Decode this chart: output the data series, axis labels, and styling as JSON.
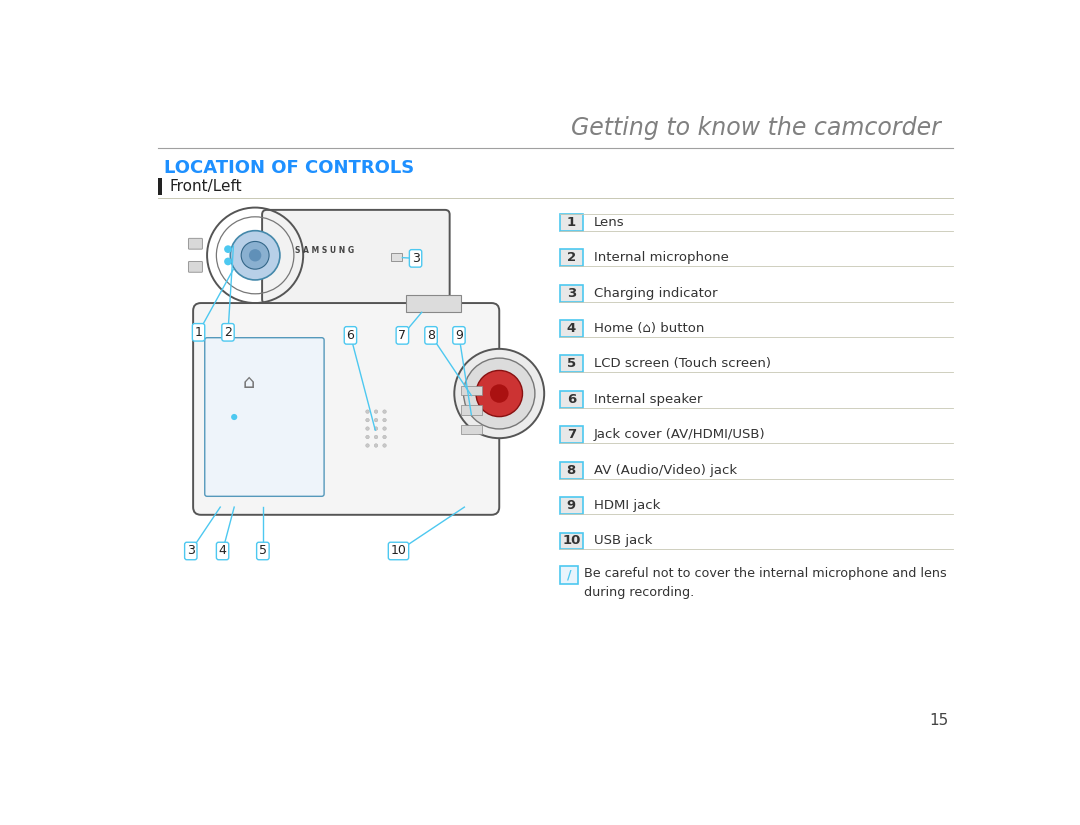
{
  "title": "Getting to know the camcorder",
  "section_title": "LOCATION OF CONTROLS",
  "subsection_title": "Front/Left",
  "items": [
    {
      "num": "1",
      "desc": "Lens"
    },
    {
      "num": "2",
      "desc": "Internal microphone"
    },
    {
      "num": "3",
      "desc": "Charging indicator"
    },
    {
      "num": "4",
      "desc": "Home (⌂) button"
    },
    {
      "num": "5",
      "desc": "LCD screen (Touch screen)"
    },
    {
      "num": "6",
      "desc": "Internal speaker"
    },
    {
      "num": "7",
      "desc": "Jack cover (AV/HDMI/USB)"
    },
    {
      "num": "8",
      "desc": "AV (Audio/Video) jack"
    },
    {
      "num": "9",
      "desc": "HDMI jack"
    },
    {
      "num": "10",
      "desc": "USB jack"
    }
  ],
  "note_text": "Be careful not to cover the internal microphone and lens\nduring recording.",
  "page_number": "15",
  "title_color": "#808080",
  "section_color": "#1E90FF",
  "subsection_color": "#222222",
  "item_num_color": "#333333",
  "item_bg_color": "#E8E8E8",
  "item_border_color": "#4DC8F0",
  "divider_color": "#C8C8B4",
  "top_line_color": "#A0A0A0",
  "note_border_color": "#4DC8F0",
  "note_bg_color": "#E8F4FC",
  "bg_color": "#FFFFFF",
  "sidebar_color": "#222222",
  "line_color": "#4DC8F0",
  "cam_edge_color": "#555555",
  "cam_body_color": "#F5F5F5",
  "cam_dark_color": "#CCCCCC",
  "cam_lens_blue": "#B8D0E8",
  "cam_red": "#CC3333"
}
